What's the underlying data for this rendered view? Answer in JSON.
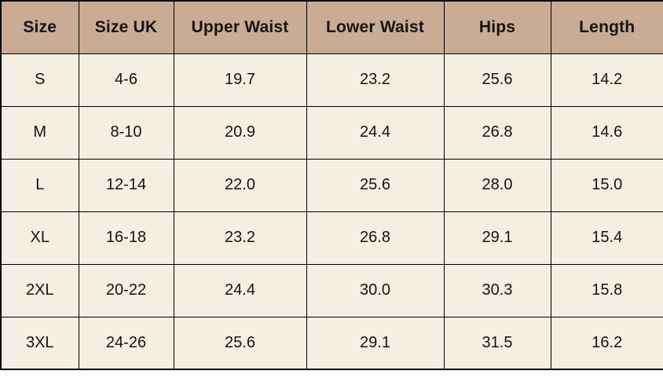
{
  "chart_data": {
    "type": "table",
    "columns": [
      "Size",
      "Size UK",
      "Upper Waist",
      "Lower Waist",
      "Hips",
      "Length"
    ],
    "rows": [
      [
        "S",
        "4-6",
        "19.7",
        "23.2",
        "25.6",
        "14.2"
      ],
      [
        "M",
        "8-10",
        "20.9",
        "24.4",
        "26.8",
        "14.6"
      ],
      [
        "L",
        "12-14",
        "22.0",
        "25.6",
        "28.0",
        "15.0"
      ],
      [
        "XL",
        "16-18",
        "23.2",
        "26.8",
        "29.1",
        "15.4"
      ],
      [
        "2XL",
        "20-22",
        "24.4",
        "30.0",
        "30.3",
        "15.8"
      ],
      [
        "3XL",
        "24-26",
        "25.6",
        "29.1",
        "31.5",
        "16.2"
      ]
    ]
  },
  "colors": {
    "header_bg": "#caab94",
    "row_bg": "#f5eee3",
    "border": "#000000",
    "text": "#141414",
    "page_bg": "#ffffff"
  }
}
